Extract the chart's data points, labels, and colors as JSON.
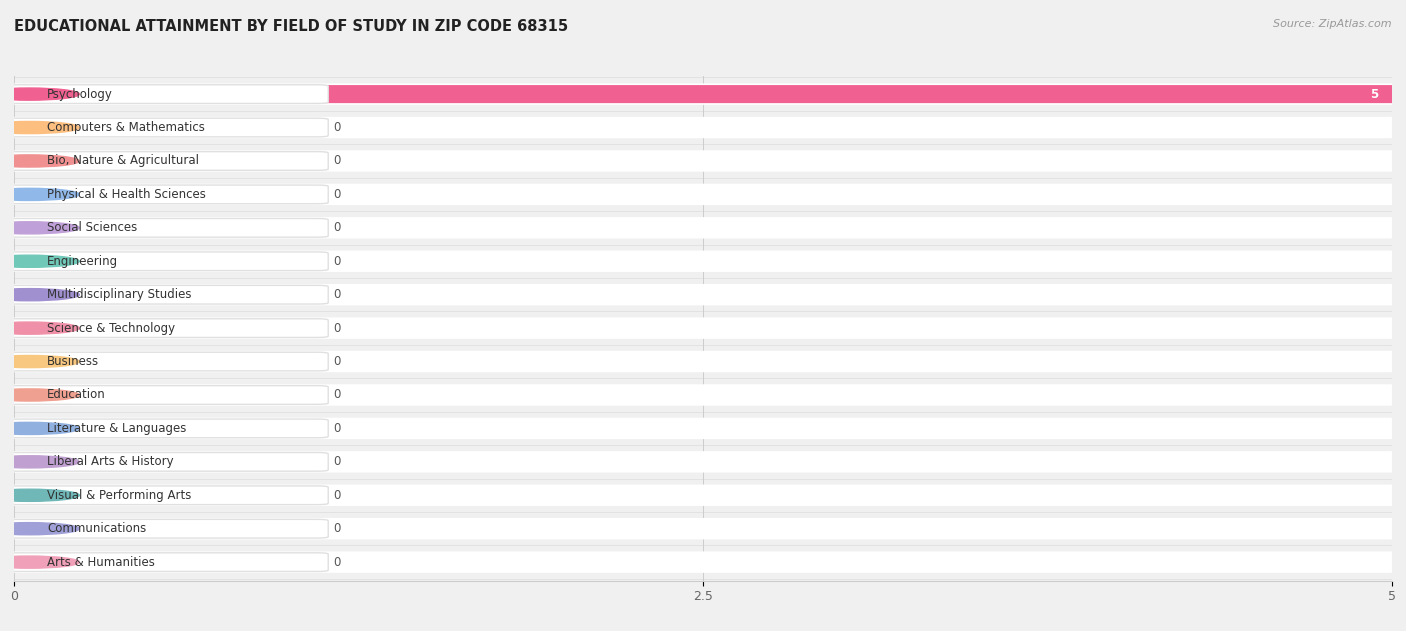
{
  "title": "EDUCATIONAL ATTAINMENT BY FIELD OF STUDY IN ZIP CODE 68315",
  "source": "Source: ZipAtlas.com",
  "categories": [
    "Psychology",
    "Computers & Mathematics",
    "Bio, Nature & Agricultural",
    "Physical & Health Sciences",
    "Social Sciences",
    "Engineering",
    "Multidisciplinary Studies",
    "Science & Technology",
    "Business",
    "Education",
    "Literature & Languages",
    "Liberal Arts & History",
    "Visual & Performing Arts",
    "Communications",
    "Arts & Humanities"
  ],
  "values": [
    5,
    0,
    0,
    0,
    0,
    0,
    0,
    0,
    0,
    0,
    0,
    0,
    0,
    0,
    0
  ],
  "bar_colors": [
    "#F06090",
    "#FDBF7F",
    "#F09090",
    "#90B8E8",
    "#C0A0D8",
    "#70C8B8",
    "#A090D0",
    "#F090A8",
    "#F8C880",
    "#F0A090",
    "#90B0E0",
    "#C0A0D0",
    "#70B8B8",
    "#A0A0D8",
    "#F0A0B8"
  ],
  "xlim": [
    0,
    5
  ],
  "xticks": [
    0,
    2.5,
    5
  ],
  "background_color": "#f0f0f0",
  "row_bg_color": "#ffffff",
  "title_fontsize": 10.5,
  "source_fontsize": 8,
  "label_fontsize": 8.5
}
